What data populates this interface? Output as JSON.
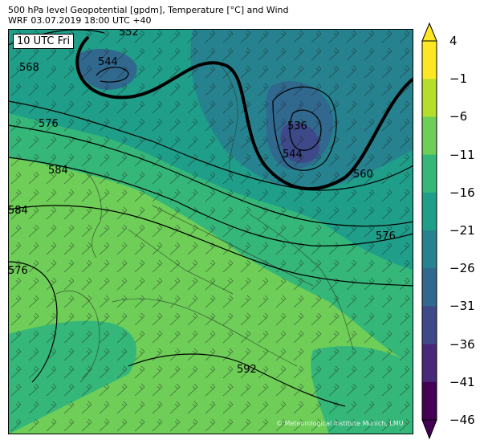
{
  "header": {
    "line1": "500 hPa level Geopotential [gpdm], Temperature [°C] and Wind",
    "line2": "WRF 03.07.2019 18:00 UTC +40"
  },
  "map": {
    "time_box": "10 UTC Fri",
    "credit": "© Meteorological Institute Munich, LMU",
    "contour_labels": [
      "544",
      "552",
      "568",
      "576",
      "584",
      "584",
      "576",
      "536",
      "544",
      "560",
      "576",
      "592"
    ]
  },
  "colorbar": {
    "labels": [
      "4",
      "−1",
      "−6",
      "−11",
      "−16",
      "−21",
      "−26",
      "−31",
      "−36",
      "−41",
      "−46"
    ],
    "colors": [
      "#fde725",
      "#b5de2b",
      "#6ece58",
      "#35b779",
      "#1f9e89",
      "#26828e",
      "#31688e",
      "#3e4989",
      "#482878",
      "#440154"
    ],
    "top_color": "#fde725",
    "bottom_color": "#440154"
  }
}
